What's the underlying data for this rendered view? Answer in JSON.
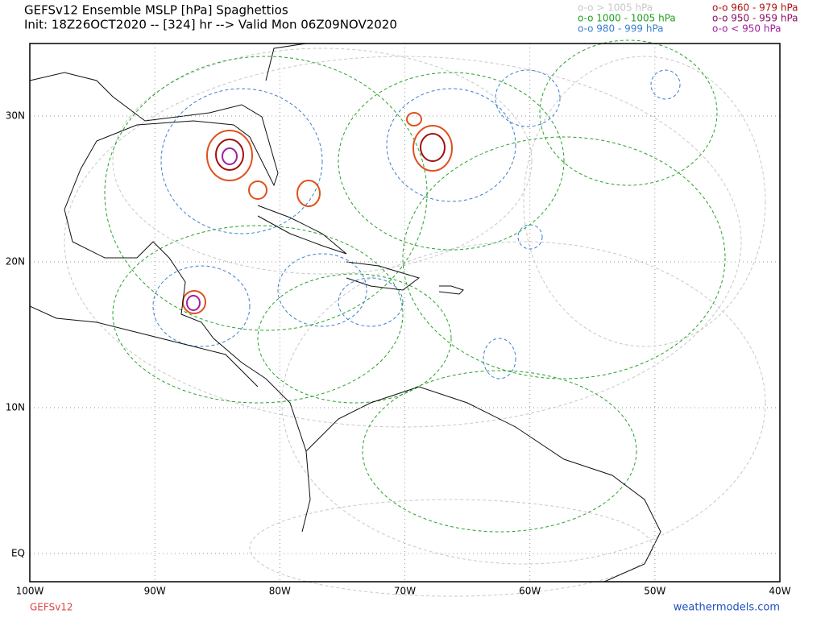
{
  "header": {
    "title": "GEFSv12 Ensemble MSLP [hPa] Spaghettios",
    "subtitle": "Init: 18Z26OCT2020 -- [324] hr --> Valid Mon 06Z09NOV2020"
  },
  "legend": [
    {
      "label": "o-o > 1005 hPa",
      "color": "#c8c8c8"
    },
    {
      "label": "o-o 1000 - 1005 hPa",
      "color": "#22a022"
    },
    {
      "label": "o-o 980 - 999 hPa",
      "color": "#3a7fd0"
    },
    {
      "label": "o-o 960 - 979 hPa",
      "color": "#b01010"
    },
    {
      "label": "o-o 950 - 959 hPa",
      "color": "#8a1060"
    },
    {
      "label": "o-o < 950 hPa",
      "color": "#a020a0"
    }
  ],
  "map": {
    "lon_ticks": [
      {
        "value": -100,
        "label": "100W"
      },
      {
        "value": -90,
        "label": "90W"
      },
      {
        "value": -80,
        "label": "80W"
      },
      {
        "value": -70,
        "label": "70W"
      },
      {
        "value": -60,
        "label": "60W"
      },
      {
        "value": -50,
        "label": "50W"
      },
      {
        "value": -40,
        "label": "40W"
      }
    ],
    "lat_ticks": [
      {
        "value": 30,
        "label": "30N"
      },
      {
        "value": 20,
        "label": "20N"
      },
      {
        "value": 10,
        "label": "10N"
      },
      {
        "value": 0,
        "label": "EQ"
      }
    ]
  },
  "footer": {
    "model": "GEFSv12",
    "site": "weathermodels.com"
  }
}
